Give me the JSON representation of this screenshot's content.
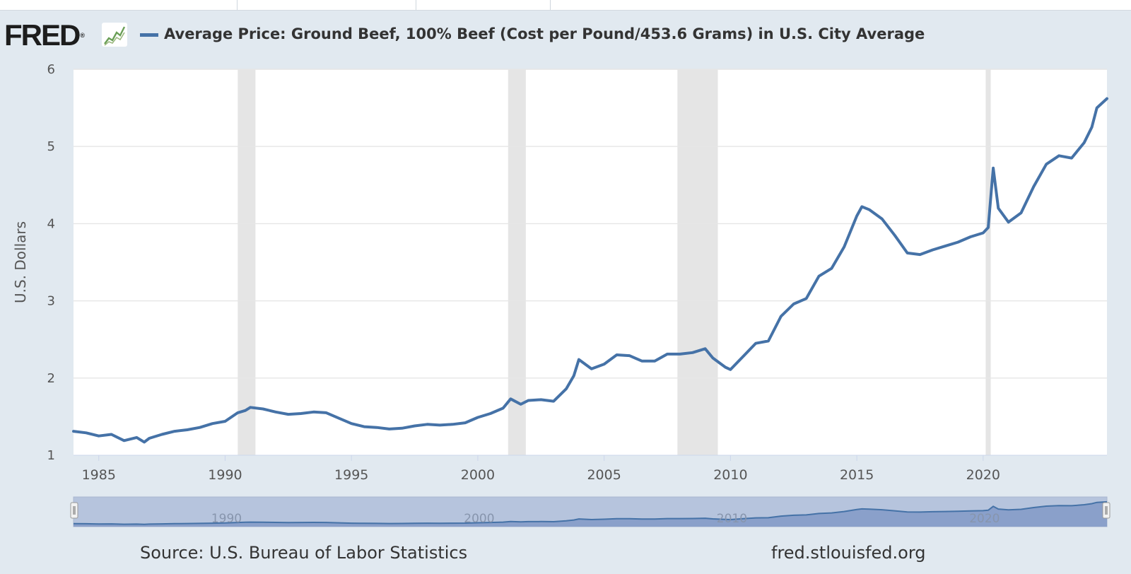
{
  "header": {
    "logo_text": "FRED",
    "logo_registered": "®",
    "legend_color": "#4572a7"
  },
  "footer": {
    "source": "Source: U.S. Bureau of Labor Statistics",
    "site": "fred.stlouisfed.org"
  },
  "colors": {
    "line": "#4572a7",
    "recession": "#e5e5e5",
    "background": "#e1e9f0",
    "plot": "#ffffff",
    "navigator_fill": "#b6c4dd",
    "navigator_series": "#4572a7"
  },
  "navigator": {
    "tick_labels": [
      "1990",
      "2000",
      "2010",
      "2020"
    ],
    "handle_icon": "grip-handle-icon"
  },
  "chart_data": {
    "type": "line",
    "title": "Average Price: Ground Beef, 100% Beef (Cost per Pound/453.6 Grams) in U.S. City Average",
    "ylabel": "U.S. Dollars",
    "xlabel": "",
    "xlim": [
      1984.0,
      2024.9
    ],
    "ylim": [
      1,
      6
    ],
    "x_ticks": [
      1985,
      1990,
      1995,
      2000,
      2005,
      2010,
      2015,
      2020
    ],
    "y_ticks": [
      1,
      2,
      3,
      4,
      5,
      6
    ],
    "grid": true,
    "legend": "top-left",
    "recessions": [
      [
        1990.5,
        1991.2
      ],
      [
        2001.2,
        2001.9
      ],
      [
        2007.9,
        2009.5
      ],
      [
        2020.1,
        2020.3
      ]
    ],
    "series": [
      {
        "name": "Average Price: Ground Beef, 100% Beef (Cost per Pound/453.6 Grams) in U.S. City Average",
        "points": [
          [
            1984.0,
            1.31
          ],
          [
            1984.5,
            1.29
          ],
          [
            1985.0,
            1.25
          ],
          [
            1985.5,
            1.27
          ],
          [
            1986.0,
            1.19
          ],
          [
            1986.5,
            1.23
          ],
          [
            1986.8,
            1.17
          ],
          [
            1987.0,
            1.22
          ],
          [
            1987.5,
            1.27
          ],
          [
            1988.0,
            1.31
          ],
          [
            1988.5,
            1.33
          ],
          [
            1989.0,
            1.36
          ],
          [
            1989.5,
            1.41
          ],
          [
            1990.0,
            1.44
          ],
          [
            1990.5,
            1.55
          ],
          [
            1990.8,
            1.58
          ],
          [
            1991.0,
            1.62
          ],
          [
            1991.5,
            1.6
          ],
          [
            1992.0,
            1.56
          ],
          [
            1992.5,
            1.53
          ],
          [
            1993.0,
            1.54
          ],
          [
            1993.5,
            1.56
          ],
          [
            1994.0,
            1.55
          ],
          [
            1994.5,
            1.48
          ],
          [
            1995.0,
            1.41
          ],
          [
            1995.5,
            1.37
          ],
          [
            1996.0,
            1.36
          ],
          [
            1996.5,
            1.34
          ],
          [
            1997.0,
            1.35
          ],
          [
            1997.5,
            1.38
          ],
          [
            1998.0,
            1.4
          ],
          [
            1998.5,
            1.39
          ],
          [
            1999.0,
            1.4
          ],
          [
            1999.5,
            1.42
          ],
          [
            2000.0,
            1.49
          ],
          [
            2000.5,
            1.54
          ],
          [
            2001.0,
            1.61
          ],
          [
            2001.3,
            1.73
          ],
          [
            2001.7,
            1.66
          ],
          [
            2002.0,
            1.71
          ],
          [
            2002.5,
            1.72
          ],
          [
            2003.0,
            1.7
          ],
          [
            2003.5,
            1.86
          ],
          [
            2003.8,
            2.03
          ],
          [
            2004.0,
            2.24
          ],
          [
            2004.5,
            2.12
          ],
          [
            2005.0,
            2.18
          ],
          [
            2005.5,
            2.3
          ],
          [
            2006.0,
            2.29
          ],
          [
            2006.5,
            2.22
          ],
          [
            2007.0,
            2.22
          ],
          [
            2007.5,
            2.31
          ],
          [
            2008.0,
            2.31
          ],
          [
            2008.5,
            2.33
          ],
          [
            2009.0,
            2.38
          ],
          [
            2009.3,
            2.26
          ],
          [
            2009.8,
            2.14
          ],
          [
            2010.0,
            2.11
          ],
          [
            2010.5,
            2.28
          ],
          [
            2011.0,
            2.45
          ],
          [
            2011.5,
            2.48
          ],
          [
            2012.0,
            2.8
          ],
          [
            2012.5,
            2.96
          ],
          [
            2013.0,
            3.03
          ],
          [
            2013.5,
            3.32
          ],
          [
            2014.0,
            3.42
          ],
          [
            2014.5,
            3.7
          ],
          [
            2015.0,
            4.1
          ],
          [
            2015.2,
            4.22
          ],
          [
            2015.5,
            4.18
          ],
          [
            2016.0,
            4.06
          ],
          [
            2016.5,
            3.85
          ],
          [
            2017.0,
            3.62
          ],
          [
            2017.5,
            3.6
          ],
          [
            2018.0,
            3.66
          ],
          [
            2018.5,
            3.71
          ],
          [
            2019.0,
            3.76
          ],
          [
            2019.5,
            3.83
          ],
          [
            2020.0,
            3.88
          ],
          [
            2020.2,
            3.95
          ],
          [
            2020.4,
            4.72
          ],
          [
            2020.6,
            4.2
          ],
          [
            2021.0,
            4.02
          ],
          [
            2021.5,
            4.14
          ],
          [
            2022.0,
            4.48
          ],
          [
            2022.5,
            4.77
          ],
          [
            2023.0,
            4.88
          ],
          [
            2023.5,
            4.85
          ],
          [
            2024.0,
            5.05
          ],
          [
            2024.3,
            5.25
          ],
          [
            2024.5,
            5.5
          ],
          [
            2024.9,
            5.62
          ]
        ]
      }
    ]
  }
}
